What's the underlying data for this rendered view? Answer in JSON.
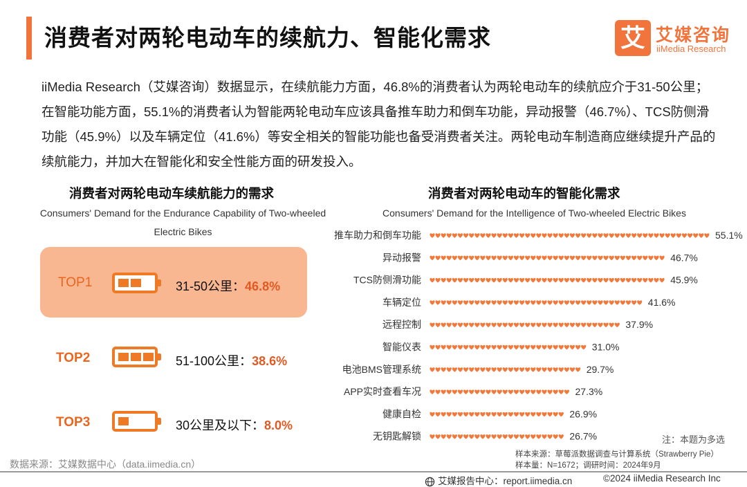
{
  "header": {
    "title": "消费者对两轮电动车的续航力、智能化需求",
    "logo_mark": "艾",
    "logo_cn": "艾媒咨询",
    "logo_en": "iiMedia Research",
    "accent": "#f0743c"
  },
  "intro": "iiMedia Research（艾媒咨询）数据显示，在续航能力方面，46.8%的消费者认为两轮电动车的续航应介于31-50公里；在智能功能方面，55.1%的消费者认为智能两轮电动车应该具备推车助力和倒车功能，异动报警（46.7%）、TCS防侧滑功能（45.9%）以及车辆定位（41.6%）等安全相关的智能功能也备受消费者关注。两轮电动车制造商应继续提升产品的续航能力，并加大在智能化和安全性能方面的研发投入。",
  "left_panel": {
    "title_cn": "消费者对两轮电动车续航能力的需求",
    "title_en": "Consumers' Demand for the Endurance Capability of Two-wheeled Electric Bikes",
    "items": [
      {
        "rank": "TOP1",
        "range": "31-50公里：",
        "pct": "46.8%",
        "battery_cells": 2
      },
      {
        "rank": "TOP2",
        "range": "51-100公里：",
        "pct": "38.6%",
        "battery_cells": 3
      },
      {
        "rank": "TOP3",
        "range": "30公里及以下：",
        "pct": "8.0%",
        "battery_cells": 1
      }
    ]
  },
  "chart_data": {
    "type": "bar",
    "orientation": "horizontal",
    "title": "消费者对两轮电动车的智能化需求",
    "subtitle": "Consumers' Demand for the Intelligence of Two-wheeled Electric Bikes",
    "unit": "%",
    "bar_style": "heart-symbols",
    "bar_color": "#f07a3c",
    "categories": [
      "推车助力和倒车功能",
      "异动报警",
      "TCS防侧滑功能",
      "车辆定位",
      "远程控制",
      "智能仪表",
      "电池BMS管理系统",
      "APP实时查看车况",
      "健康自检",
      "无钥匙解锁"
    ],
    "values": [
      55.1,
      46.7,
      45.9,
      41.6,
      37.9,
      31.0,
      29.7,
      27.3,
      26.9,
      26.7
    ],
    "labels": [
      "55.1%",
      "46.7%",
      "45.9%",
      "41.6%",
      "37.9%",
      "31.0%",
      "29.7%",
      "27.3%",
      "26.9%",
      "26.7%"
    ]
  },
  "notes": {
    "multi_choice": "注：本题为多选",
    "sample_source": "样本来源：草莓派数据调查与计算系统（Strawberry Pie）",
    "sample_size": "样本量：N=1672；调研时间：2024年9月",
    "data_source": "数据来源：艾媒数据中心（data.iimedia.cn）"
  },
  "footer": {
    "report_center": "艾媒报告中心：report.iimedia.cn",
    "copyright": "©2024  iiMedia Research  Inc"
  }
}
